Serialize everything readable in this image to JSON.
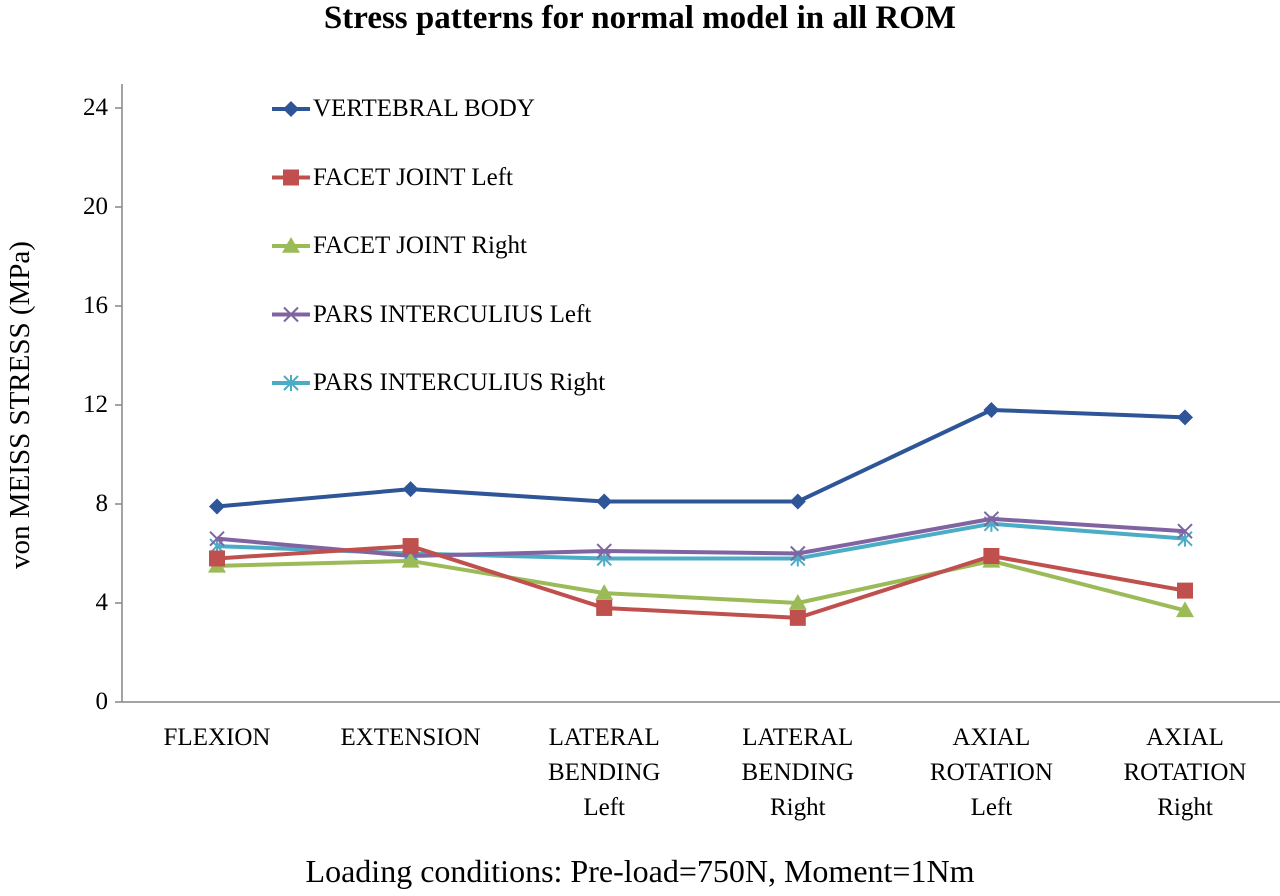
{
  "chart_data": {
    "type": "line",
    "title": "Stress patterns for normal model in all ROM",
    "xlabel": "Loading conditions: Pre-load=750N, Moment=1Nm",
    "ylabel": "von MEISS STRESS (MPa)",
    "ylim": [
      0,
      24
    ],
    "yticks": [
      "0",
      "4",
      "8",
      "12",
      "16",
      "20",
      "24"
    ],
    "categories": [
      [
        "FLEXION"
      ],
      [
        "EXTENSION"
      ],
      [
        "LATERAL",
        "BENDING",
        "Left"
      ],
      [
        "LATERAL",
        "BENDING",
        "Right"
      ],
      [
        "AXIAL",
        "ROTATION",
        "Left"
      ],
      [
        "AXIAL",
        "ROTATION",
        "Right"
      ]
    ],
    "grid": false,
    "legend_position": "top-left",
    "series": [
      {
        "name": "VERTEBRAL BODY",
        "color": "#2e5597",
        "marker": "diamond",
        "values": [
          7.9,
          8.6,
          8.1,
          8.1,
          11.8,
          11.5
        ]
      },
      {
        "name": "FACET JOINT Left",
        "color": "#c0504d",
        "marker": "square",
        "values": [
          5.8,
          6.3,
          3.8,
          3.4,
          5.9,
          4.5
        ]
      },
      {
        "name": "FACET JOINT Right",
        "color": "#9bbb59",
        "marker": "triangle",
        "values": [
          5.5,
          5.7,
          4.4,
          4.0,
          5.7,
          3.7
        ]
      },
      {
        "name": "PARS INTERCULIUS Left",
        "color": "#8064a2",
        "marker": "x",
        "values": [
          6.6,
          5.9,
          6.1,
          6.0,
          7.4,
          6.9
        ]
      },
      {
        "name": "PARS INTERCULIUS Right",
        "color": "#4bacc6",
        "marker": "star",
        "values": [
          6.3,
          6.0,
          5.8,
          5.8,
          7.2,
          6.6
        ]
      }
    ]
  }
}
